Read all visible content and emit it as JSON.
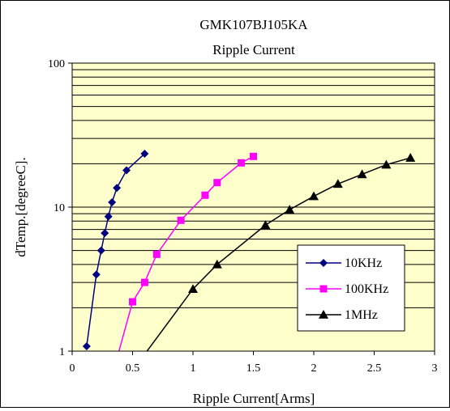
{
  "chart_data": {
    "type": "line",
    "title": "GMK107BJ105KA",
    "subtitle": "Ripple Current",
    "xlabel": "Ripple Current[Arms]",
    "ylabel": "dTemp.[degreeC].",
    "xlim": [
      0,
      3
    ],
    "ylim": [
      1,
      100
    ],
    "yscale": "log",
    "x_ticks": [
      "0",
      "0.5",
      "1",
      "1.5",
      "2",
      "2.5",
      "3"
    ],
    "y_ticks": [
      "1",
      "10",
      "100"
    ],
    "grid": "horizontal",
    "legend_position": "lower-right",
    "plot_background": "#ffffcc",
    "series": [
      {
        "name": "10KHz",
        "color": "#000080",
        "marker": "diamond",
        "points": [
          [
            0.12,
            1.08
          ],
          [
            0.2,
            3.4
          ],
          [
            0.24,
            5.0
          ],
          [
            0.27,
            6.6
          ],
          [
            0.3,
            8.6
          ],
          [
            0.33,
            10.8
          ],
          [
            0.37,
            13.6
          ],
          [
            0.45,
            18.0
          ],
          [
            0.6,
            23.5
          ]
        ]
      },
      {
        "name": "100KHz",
        "color": "#ff00ff",
        "marker": "square",
        "points": [
          [
            0.38,
            0.95
          ],
          [
            0.5,
            2.2
          ],
          [
            0.6,
            3.0
          ],
          [
            0.7,
            4.7
          ],
          [
            0.9,
            8.1
          ],
          [
            1.1,
            12.1
          ],
          [
            1.2,
            14.8
          ],
          [
            1.4,
            20.3
          ],
          [
            1.5,
            22.5
          ]
        ]
      },
      {
        "name": "1MHz",
        "color": "#000000",
        "marker": "triangle",
        "points": [
          [
            0.6,
            0.95
          ],
          [
            1.0,
            2.7
          ],
          [
            1.2,
            4.0
          ],
          [
            1.6,
            7.5
          ],
          [
            1.8,
            9.6
          ],
          [
            2.0,
            11.9
          ],
          [
            2.2,
            14.5
          ],
          [
            2.4,
            16.9
          ],
          [
            2.6,
            19.7
          ],
          [
            2.8,
            22.0
          ]
        ]
      }
    ]
  }
}
